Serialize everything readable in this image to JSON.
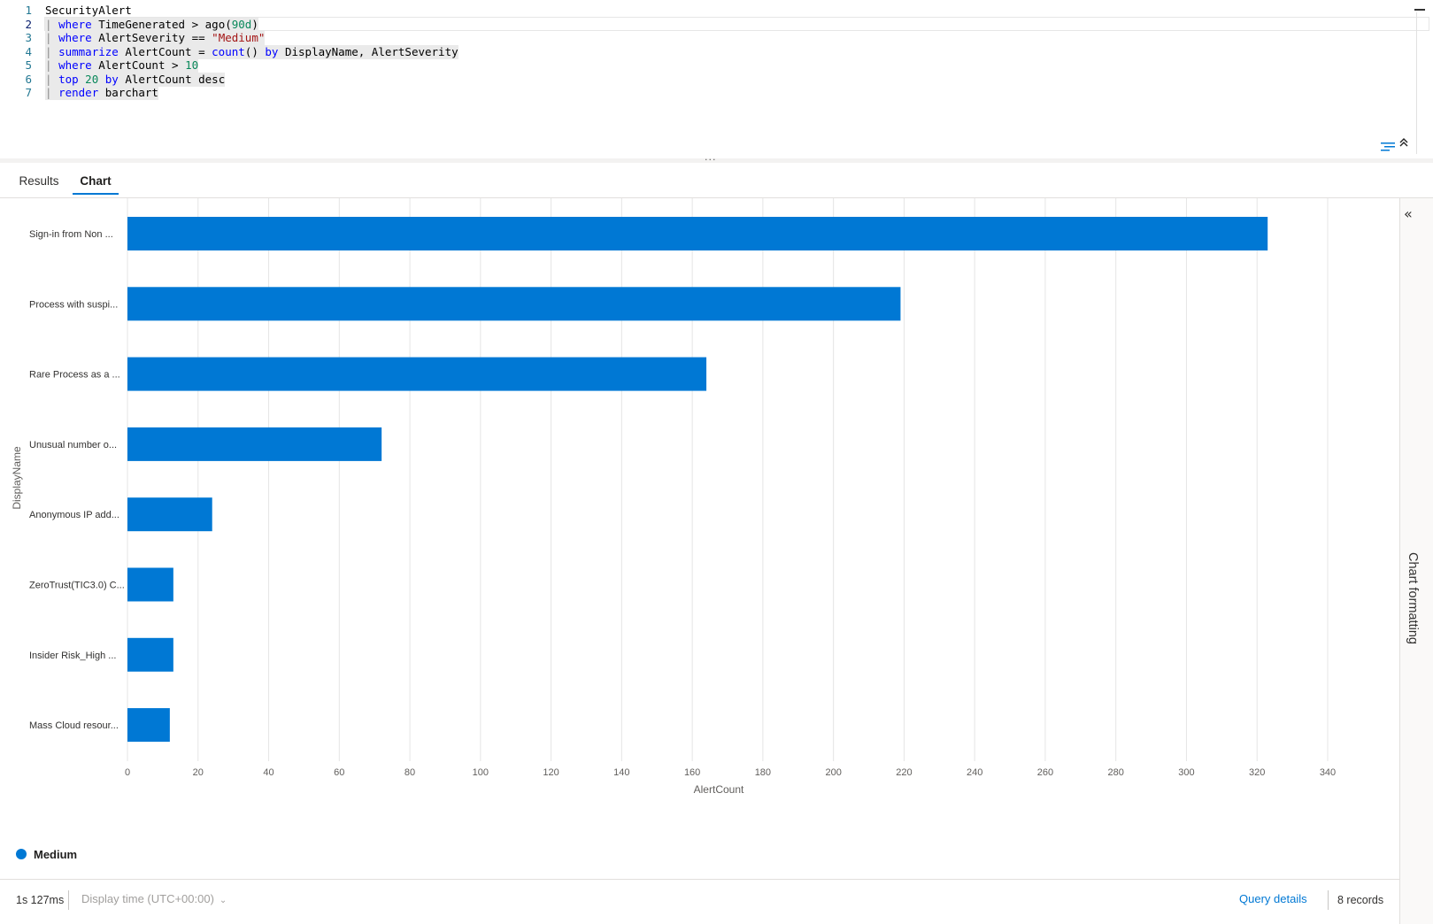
{
  "editor": {
    "lines": [
      {
        "num": "1",
        "tokens": [
          {
            "t": "SecurityAlert",
            "c": "txt"
          }
        ]
      },
      {
        "num": "2",
        "tokens": [
          {
            "t": "| ",
            "c": "pipe"
          },
          {
            "t": "where",
            "c": "kw"
          },
          {
            "t": " TimeGenerated > ago(",
            "c": "txt"
          },
          {
            "t": "90d",
            "c": "num"
          },
          {
            "t": ")",
            "c": "txt"
          }
        ]
      },
      {
        "num": "3",
        "tokens": [
          {
            "t": "| ",
            "c": "pipe"
          },
          {
            "t": "where",
            "c": "kw"
          },
          {
            "t": " AlertSeverity == ",
            "c": "txt"
          },
          {
            "t": "\"Medium\"",
            "c": "str"
          }
        ]
      },
      {
        "num": "4",
        "tokens": [
          {
            "t": "| ",
            "c": "pipe"
          },
          {
            "t": "summarize",
            "c": "kw"
          },
          {
            "t": " AlertCount = ",
            "c": "txt"
          },
          {
            "t": "count",
            "c": "fn"
          },
          {
            "t": "() ",
            "c": "txt"
          },
          {
            "t": "by",
            "c": "kw"
          },
          {
            "t": " DisplayName, AlertSeverity",
            "c": "txt"
          }
        ]
      },
      {
        "num": "5",
        "tokens": [
          {
            "t": "| ",
            "c": "pipe"
          },
          {
            "t": "where",
            "c": "kw"
          },
          {
            "t": " AlertCount > ",
            "c": "txt"
          },
          {
            "t": "10",
            "c": "num"
          }
        ]
      },
      {
        "num": "6",
        "tokens": [
          {
            "t": "| ",
            "c": "pipe"
          },
          {
            "t": "top",
            "c": "kw"
          },
          {
            "t": " ",
            "c": "txt"
          },
          {
            "t": "20",
            "c": "num"
          },
          {
            "t": " ",
            "c": "txt"
          },
          {
            "t": "by",
            "c": "kw"
          },
          {
            "t": " AlertCount desc",
            "c": "txt"
          }
        ]
      },
      {
        "num": "7",
        "tokens": [
          {
            "t": "| ",
            "c": "pipe"
          },
          {
            "t": "render",
            "c": "kw"
          },
          {
            "t": " barchart",
            "c": "txt"
          }
        ]
      }
    ],
    "active_line": "2",
    "splitter_handle": "···",
    "collapse_icon": "chevron-double-up-icon",
    "format_icon": "format-lines-icon"
  },
  "tabs": [
    {
      "label": "Results",
      "active": false
    },
    {
      "label": "Chart",
      "active": true
    }
  ],
  "format_panel": {
    "label": "Chart formatting",
    "expand_icon": "chevron-double-left-icon",
    "expand_glyph": "«"
  },
  "chart_data": {
    "type": "bar",
    "orientation": "horizontal",
    "categories": [
      "Sign-in from Non ...",
      "Process with suspi...",
      "Rare Process as a ...",
      "Unusual number o...",
      "Anonymous IP add...",
      "ZeroTrust(TIC3.0) C...",
      "Insider Risk_High ...",
      "Mass Cloud resour..."
    ],
    "series": [
      {
        "name": "Medium",
        "color": "#0078d4",
        "values": [
          323,
          219,
          164,
          72,
          24,
          13,
          13,
          12
        ]
      }
    ],
    "xlabel": "AlertCount",
    "ylabel": "DisplayName",
    "xlim": [
      0,
      340
    ],
    "xticks": [
      0,
      20,
      40,
      60,
      80,
      100,
      120,
      140,
      160,
      180,
      200,
      220,
      240,
      260,
      280,
      300,
      320,
      340
    ],
    "grid": true,
    "legend": "bottom-left"
  },
  "legend": {
    "label": "Medium",
    "color": "#0078d4"
  },
  "status": {
    "duration": "1s 127ms",
    "display_time": "Display time (UTC+00:00)",
    "display_time_chevron": "⌄",
    "query_details": "Query details",
    "records": "8 records"
  }
}
